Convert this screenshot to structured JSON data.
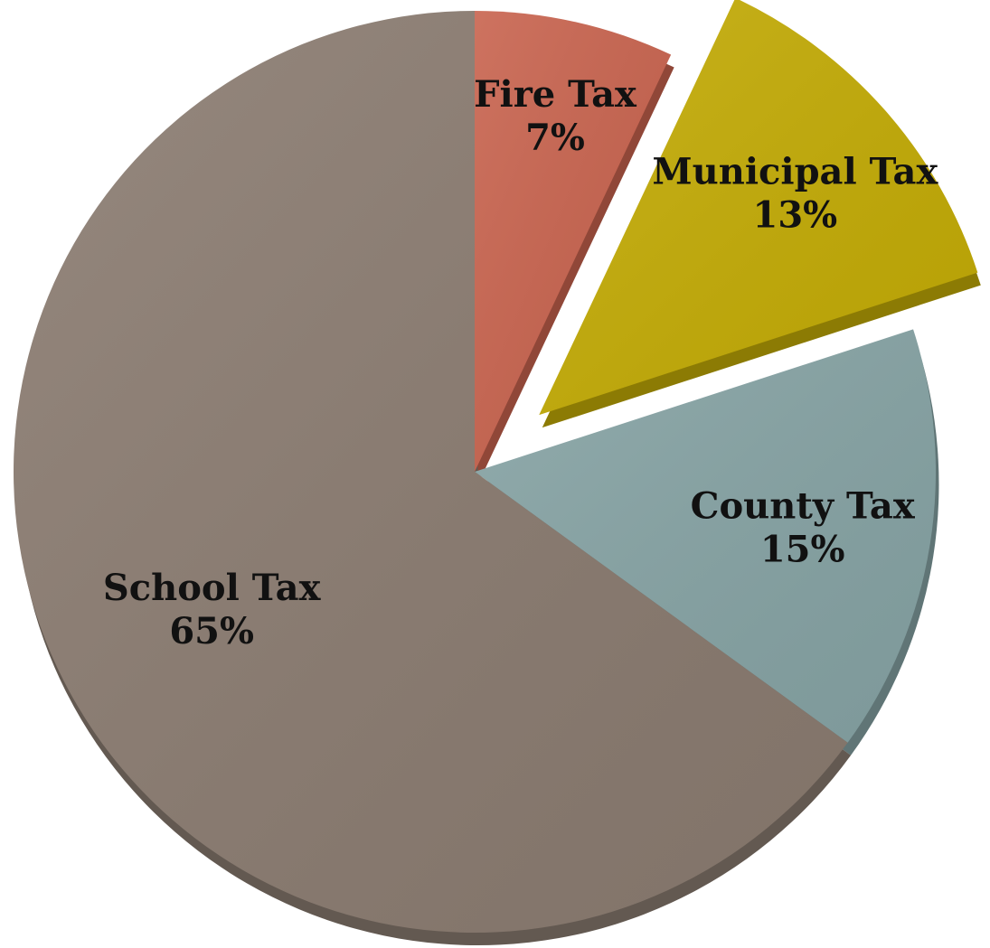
{
  "chart_data": {
    "type": "pie",
    "style": "3d-exploded",
    "start_angle_deg": 0,
    "direction": "clockwise",
    "exploded": [
      "Municipal Tax"
    ],
    "slices": [
      {
        "label": "Fire Tax",
        "value": 7,
        "value_label": "7%",
        "color": "#c8634e"
      },
      {
        "label": "Municipal Tax",
        "value": 13,
        "value_label": "13%",
        "color": "#c3ab05"
      },
      {
        "label": "County Tax",
        "value": 15,
        "value_label": "15%",
        "color": "#86a3a4"
      },
      {
        "label": "School Tax",
        "value": 65,
        "value_label": "65%",
        "color": "#8a7b70"
      }
    ]
  }
}
